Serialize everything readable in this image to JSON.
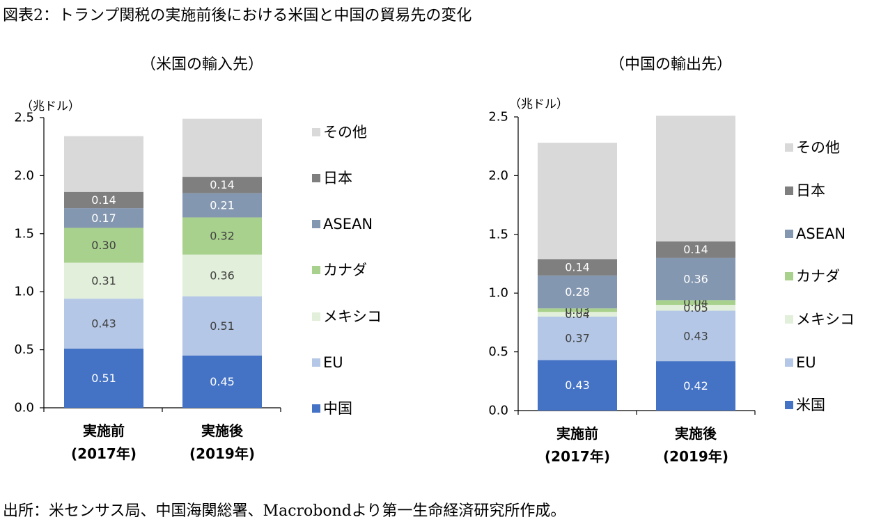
{
  "figure_title": "図表2：トランプ関税の実施前後における米国と中国の貿易先の変化",
  "source_note": "出所：米センサス局、中国海関総署、Macrobondより第一生命経済研究所作成。",
  "colors": {
    "その他": "#d9d9d9",
    "日本": "#7f7f7f",
    "ASEAN": "#8497b0",
    "カナダ": "#a9d18e",
    "メキシコ": "#e2efda",
    "EU": "#b4c7e7",
    "中国": "#4472c4",
    "米国": "#4472c4"
  },
  "chart_data": [
    {
      "type": "bar",
      "stacked": true,
      "title": "（米国の輸入先）",
      "ylabel": "（兆ドル）",
      "ylim": [
        0,
        2.5
      ],
      "yticks": [
        "0.0",
        "0.5",
        "1.0",
        "1.5",
        "2.0",
        "2.5"
      ],
      "categories": [
        [
          "実施前",
          "(2017年)"
        ],
        [
          "実施後",
          "(2019年)"
        ]
      ],
      "series": [
        {
          "name": "中国",
          "values": [
            0.51,
            0.45
          ],
          "labels": [
            "0.51",
            "0.45"
          ]
        },
        {
          "name": "EU",
          "values": [
            0.43,
            0.51
          ],
          "labels": [
            "0.43",
            "0.51"
          ]
        },
        {
          "name": "メキシコ",
          "values": [
            0.31,
            0.36
          ],
          "labels": [
            "0.31",
            "0.36"
          ]
        },
        {
          "name": "カナダ",
          "values": [
            0.3,
            0.32
          ],
          "labels": [
            "0.30",
            "0.32"
          ]
        },
        {
          "name": "ASEAN",
          "values": [
            0.17,
            0.21
          ],
          "labels": [
            "0.17",
            "0.21"
          ]
        },
        {
          "name": "日本",
          "values": [
            0.14,
            0.14
          ],
          "labels": [
            "0.14",
            "0.14"
          ]
        },
        {
          "name": "その他",
          "values": [
            0.48,
            0.5
          ],
          "labels": [
            "",
            ""
          ]
        }
      ],
      "legend": [
        "その他",
        "日本",
        "ASEAN",
        "カナダ",
        "メキシコ",
        "EU",
        "中国"
      ]
    },
    {
      "type": "bar",
      "stacked": true,
      "title": "（中国の輸出先）",
      "ylabel": "（兆ドル）",
      "ylim": [
        0,
        2.5
      ],
      "yticks": [
        "0.0",
        "0.5",
        "1.0",
        "1.5",
        "2.0",
        "2.5"
      ],
      "categories": [
        [
          "実施前",
          "(2017年)"
        ],
        [
          "実施後",
          "(2019年)"
        ]
      ],
      "series": [
        {
          "name": "米国",
          "values": [
            0.43,
            0.42
          ],
          "labels": [
            "0.43",
            "0.42"
          ]
        },
        {
          "name": "EU",
          "values": [
            0.37,
            0.43
          ],
          "labels": [
            "0.37",
            "0.43"
          ]
        },
        {
          "name": "メキシコ",
          "values": [
            0.04,
            0.05
          ],
          "labels": [
            "0.04",
            "0.05"
          ]
        },
        {
          "name": "カナダ",
          "values": [
            0.03,
            0.04
          ],
          "labels": [
            "0.03",
            "0.04"
          ]
        },
        {
          "name": "ASEAN",
          "values": [
            0.28,
            0.36
          ],
          "labels": [
            "0.28",
            "0.36"
          ]
        },
        {
          "name": "日本",
          "values": [
            0.14,
            0.14
          ],
          "labels": [
            "0.14",
            "0.14"
          ]
        },
        {
          "name": "その他",
          "values": [
            0.99,
            1.07
          ],
          "labels": [
            "",
            ""
          ]
        }
      ],
      "legend": [
        "その他",
        "日本",
        "ASEAN",
        "カナダ",
        "メキシコ",
        "EU",
        "米国"
      ]
    }
  ]
}
